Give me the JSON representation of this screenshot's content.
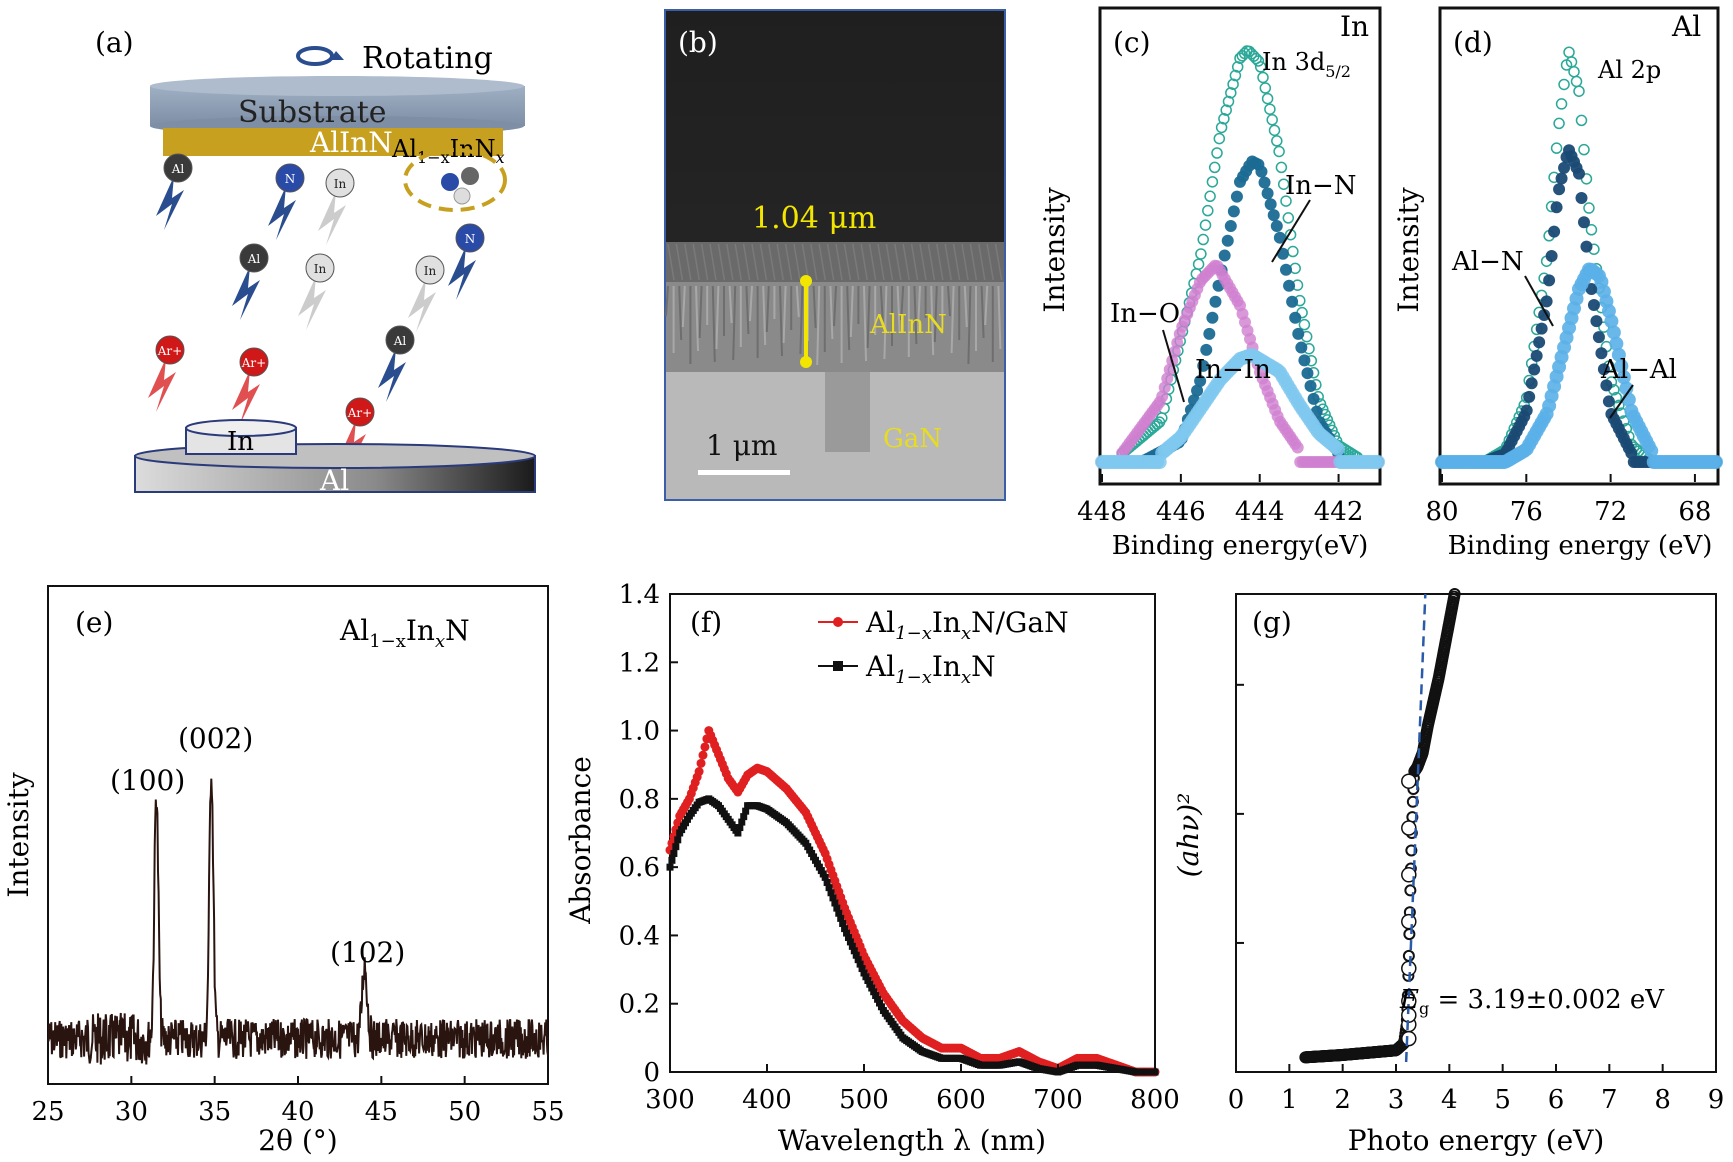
{
  "panels": {
    "a": {
      "label": "(a)",
      "rotating": "Rotating",
      "substrate": "Substrate",
      "film": "AlInN",
      "compound": "Al",
      "compound_sub": "1−x",
      "compound_mid": "InN",
      "compound_x": "x",
      "target_in": "In",
      "target_al": "Al",
      "atom_al": "Al",
      "atom_n": "N",
      "atom_in": "In",
      "atom_ar": "Ar+"
    },
    "b": {
      "label": "(b)",
      "thickness": "1.04 μm",
      "layer_top": "AlInN",
      "layer_bottom": "GaN",
      "scalebar": "1 μm"
    },
    "c": {
      "label": "(c)",
      "element": "In",
      "peak": "In 3d",
      "peak_sub": "5/2",
      "ylabel": "Intensity",
      "xlabel": "Binding energy(eV)",
      "ann_inn": "In−N",
      "ann_ino": "In−O",
      "ann_inin": "In−In",
      "xticks": [
        "448",
        "446",
        "444",
        "442"
      ]
    },
    "d": {
      "label": "(d)",
      "element": "Al",
      "peak": "Al 2p",
      "ylabel": "Intensity",
      "xlabel": "Binding energy (eV)",
      "ann_aln": "Al−N",
      "ann_alal": "Al−Al",
      "xticks": [
        "80",
        "76",
        "72",
        "68"
      ]
    },
    "e": {
      "label": "(e)",
      "title_a": "Al",
      "title_sub": "1−x",
      "title_b": "In",
      "title_x": "x",
      "title_c": "N",
      "ylabel": "Intensity",
      "xlabel": "2θ (°)",
      "peaks": [
        "(100)",
        "(002)",
        "(102)"
      ],
      "xticks": [
        "25",
        "30",
        "35",
        "40",
        "45",
        "50",
        "55"
      ]
    },
    "f": {
      "label": "(f)",
      "ylabel": "Absorbance",
      "xlabel": "Wavelength λ (nm)",
      "legend1": "Al1−xInxN/GaN",
      "legend2": "Al1−xInxN",
      "xticks": [
        "300",
        "400",
        "500",
        "600",
        "700",
        "800"
      ],
      "yticks": [
        "0",
        "0.2",
        "0.4",
        "0.6",
        "0.8",
        "1.0",
        "1.2",
        "1.4"
      ]
    },
    "g": {
      "label": "(g)",
      "ylabel": "(ahν)²",
      "xlabel": "Photo energy (eV)",
      "annotation": "Eg = 3.19±0.002 eV",
      "xticks": [
        "0",
        "1",
        "2",
        "3",
        "4",
        "5",
        "6",
        "7",
        "8",
        "9"
      ]
    }
  },
  "chart_data": [
    {
      "type": "line",
      "panel": "c",
      "xlabel": "Binding energy(eV)",
      "ylabel": "Intensity",
      "xlim": [
        448,
        441
      ],
      "series": [
        {
          "name": "In 3d5/2",
          "x": [
            447.5,
            446.5,
            445.5,
            445,
            444.5,
            444.3,
            444,
            443.5,
            443,
            442.5,
            442,
            441.5
          ],
          "y": [
            0.02,
            0.1,
            0.5,
            0.8,
            0.98,
            1.0,
            0.97,
            0.75,
            0.4,
            0.15,
            0.04,
            0.01
          ]
        },
        {
          "name": "In−N",
          "x": [
            447,
            446,
            445.5,
            445,
            444.5,
            444.2,
            444,
            443.5,
            443,
            442.5,
            442
          ],
          "y": [
            0.0,
            0.05,
            0.2,
            0.45,
            0.68,
            0.73,
            0.72,
            0.55,
            0.3,
            0.1,
            0.02
          ]
        },
        {
          "name": "In−O",
          "x": [
            447.5,
            446.5,
            446,
            445.5,
            445.1,
            444.5,
            444,
            443.5,
            443
          ],
          "y": [
            0.02,
            0.15,
            0.32,
            0.44,
            0.48,
            0.38,
            0.22,
            0.1,
            0.03
          ]
        },
        {
          "name": "In−In",
          "x": [
            446.5,
            446,
            445.5,
            445,
            444.5,
            444.2,
            443.5,
            443,
            442.5,
            442
          ],
          "y": [
            0.02,
            0.06,
            0.13,
            0.2,
            0.25,
            0.26,
            0.22,
            0.14,
            0.07,
            0.03
          ]
        }
      ]
    },
    {
      "type": "line",
      "panel": "d",
      "xlabel": "Binding energy (eV)",
      "ylabel": "Intensity",
      "xlim": [
        80,
        67
      ],
      "series": [
        {
          "name": "Al 2p",
          "x": [
            78,
            77,
            76,
            75,
            74.5,
            74,
            73.5,
            73,
            72,
            71,
            70
          ],
          "y": [
            0.0,
            0.03,
            0.15,
            0.5,
            0.8,
            1.0,
            0.9,
            0.6,
            0.2,
            0.04,
            0.0
          ]
        },
        {
          "name": "Al−N",
          "x": [
            78,
            77,
            76,
            75,
            74.5,
            74,
            73.5,
            73,
            72,
            71
          ],
          "y": [
            0.0,
            0.02,
            0.12,
            0.4,
            0.65,
            0.76,
            0.7,
            0.45,
            0.12,
            0.02
          ]
        },
        {
          "name": "Al−Al",
          "x": [
            77,
            76,
            75,
            74,
            73.5,
            73,
            72.5,
            72,
            71,
            70
          ],
          "y": [
            0.0,
            0.03,
            0.12,
            0.32,
            0.42,
            0.47,
            0.45,
            0.35,
            0.12,
            0.02
          ]
        }
      ]
    },
    {
      "type": "line",
      "panel": "e",
      "xlabel": "2θ (°)",
      "ylabel": "Intensity",
      "xlim": [
        25,
        55
      ],
      "peaks": [
        {
          "label": "(100)",
          "x": 31.5,
          "y": 0.75
        },
        {
          "label": "(002)",
          "x": 34.8,
          "y": 0.82
        },
        {
          "label": "(102)",
          "x": 44.0,
          "y": 0.23
        }
      ]
    },
    {
      "type": "scatter",
      "panel": "f",
      "xlabel": "Wavelength λ (nm)",
      "ylabel": "Absorbance",
      "xlim": [
        300,
        800
      ],
      "ylim": [
        0,
        1.4
      ],
      "series": [
        {
          "name": "Al1−xInxN/GaN",
          "color": "#e02020",
          "x": [
            300,
            310,
            320,
            330,
            340,
            350,
            360,
            370,
            380,
            390,
            400,
            420,
            440,
            460,
            480,
            500,
            520,
            540,
            560,
            580,
            600,
            620,
            640,
            660,
            680,
            700,
            720,
            740,
            760,
            780,
            800
          ],
          "y": [
            0.65,
            0.75,
            0.8,
            0.88,
            1.0,
            0.93,
            0.86,
            0.82,
            0.87,
            0.89,
            0.88,
            0.83,
            0.76,
            0.64,
            0.48,
            0.34,
            0.23,
            0.15,
            0.1,
            0.07,
            0.07,
            0.04,
            0.04,
            0.06,
            0.03,
            0.01,
            0.04,
            0.04,
            0.02,
            0.0,
            0.0
          ]
        },
        {
          "name": "Al1−xInxN",
          "color": "#111111",
          "x": [
            300,
            310,
            320,
            330,
            340,
            350,
            360,
            370,
            380,
            390,
            400,
            420,
            440,
            460,
            480,
            500,
            520,
            540,
            560,
            580,
            600,
            620,
            640,
            660,
            680,
            700,
            720,
            740,
            760,
            780,
            800
          ],
          "y": [
            0.6,
            0.7,
            0.75,
            0.79,
            0.8,
            0.78,
            0.74,
            0.7,
            0.78,
            0.78,
            0.77,
            0.73,
            0.67,
            0.57,
            0.42,
            0.29,
            0.18,
            0.1,
            0.06,
            0.04,
            0.04,
            0.02,
            0.02,
            0.03,
            0.01,
            0.0,
            0.02,
            0.02,
            0.01,
            0.0,
            0.0
          ]
        }
      ]
    },
    {
      "type": "scatter",
      "panel": "g",
      "xlabel": "Photo energy (eV)",
      "ylabel": "(ahν)²",
      "xlim": [
        0,
        9
      ],
      "series": [
        {
          "name": "data",
          "x": [
            1.3,
            2.0,
            2.5,
            3.0,
            3.15,
            3.2,
            3.22,
            3.24,
            3.26,
            3.28,
            3.3,
            3.32,
            3.34,
            3.4,
            3.5,
            3.6,
            3.8,
            4.0,
            4.1
          ],
          "y": [
            0.01,
            0.015,
            0.02,
            0.025,
            0.04,
            0.08,
            0.13,
            0.22,
            0.32,
            0.42,
            0.5,
            0.57,
            0.62,
            0.63,
            0.66,
            0.72,
            0.82,
            0.94,
            1.0
          ]
        }
      ],
      "fit_line": {
        "x0": 3.19,
        "label": "Eg = 3.19±0.002 eV"
      }
    }
  ]
}
